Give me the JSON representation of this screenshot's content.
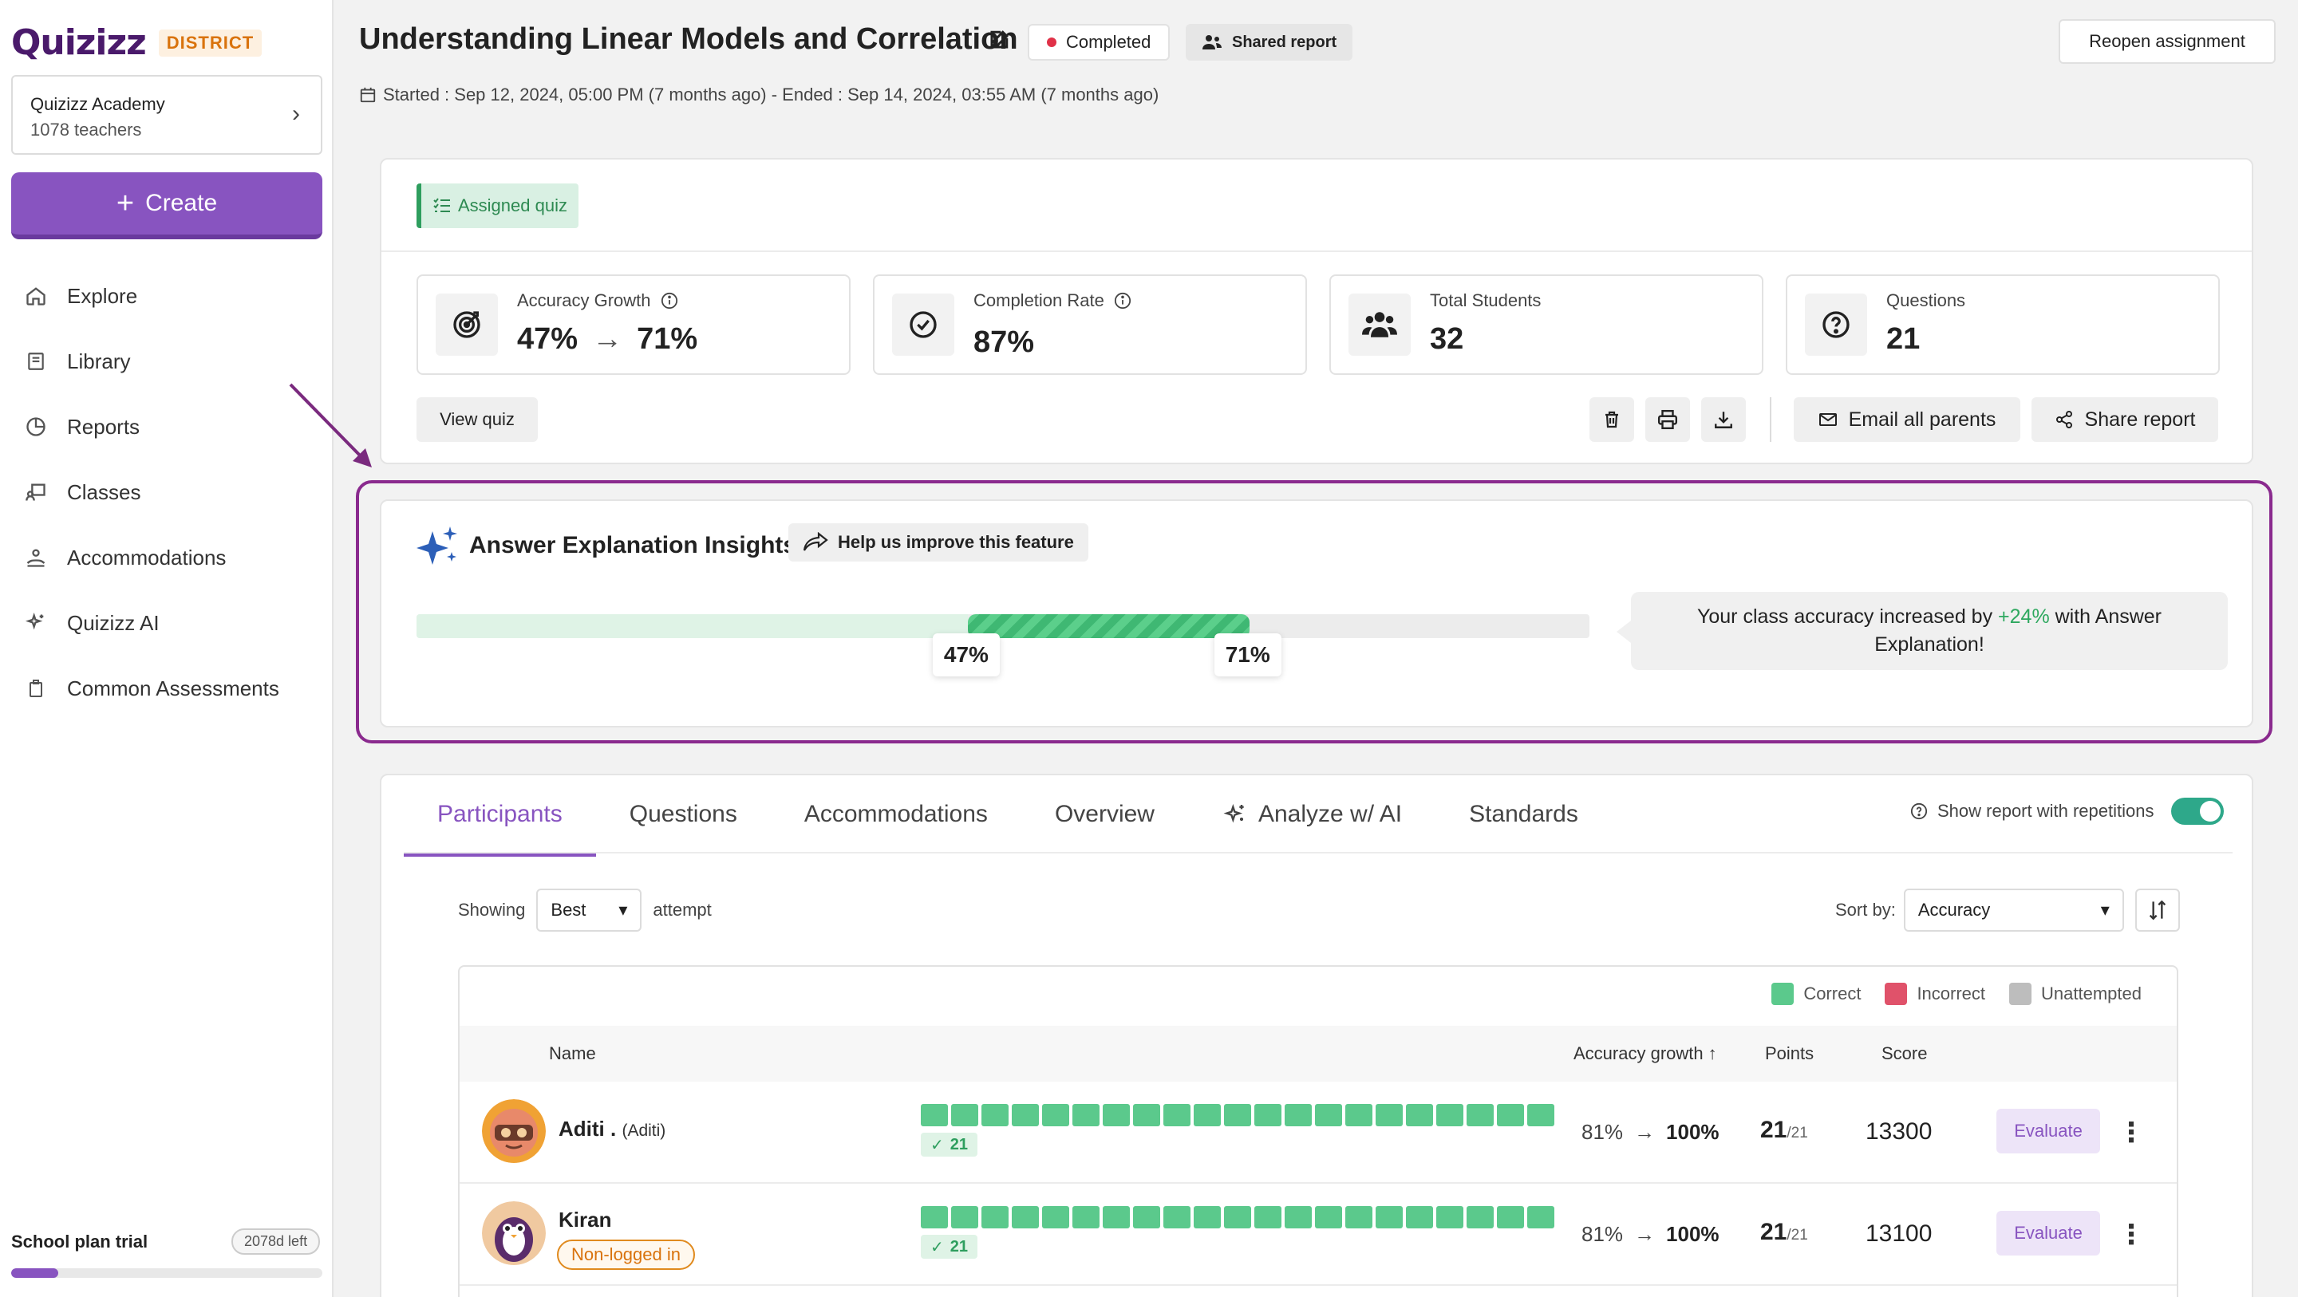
{
  "sidebar": {
    "logo": "Quizizz",
    "badge": "DISTRICT",
    "org_name": "Quizizz Academy",
    "org_sub": "1078 teachers",
    "create_label": "Create",
    "nav": [
      {
        "label": "Explore",
        "icon": "home-icon"
      },
      {
        "label": "Library",
        "icon": "book-icon"
      },
      {
        "label": "Reports",
        "icon": "pie-chart-icon"
      },
      {
        "label": "Classes",
        "icon": "classroom-icon"
      },
      {
        "label": "Accommodations",
        "icon": "accommodation-icon"
      },
      {
        "label": "Quizizz AI",
        "icon": "sparkle-icon"
      },
      {
        "label": "Common Assessments",
        "icon": "clipboard-icon"
      }
    ],
    "trial_label": "School plan trial",
    "trial_left": "2078d left",
    "trial_progress": 0.15
  },
  "header": {
    "title": "Understanding Linear Models and Correlation",
    "status": "Completed",
    "shared": "Shared report",
    "reopen": "Reopen assignment",
    "dates": "Started : Sep 12, 2024, 05:00 PM (7 months ago) - Ended : Sep 14, 2024, 03:55 AM (7 months ago)"
  },
  "summary": {
    "tag": "Assigned quiz",
    "stats": [
      {
        "label": "Accuracy Growth",
        "from": "47%",
        "to": "71%"
      },
      {
        "label": "Completion Rate",
        "value": "87%"
      },
      {
        "label": "Total Students",
        "value": "32"
      },
      {
        "label": "Questions",
        "value": "21"
      }
    ],
    "view_quiz": "View quiz",
    "email_parents": "Email all parents",
    "share_report": "Share report"
  },
  "insights": {
    "title": "Answer Explanation Insights",
    "help": "Help us improve this feature",
    "from_pct": "47%",
    "to_pct": "71%",
    "from_value": 0.47,
    "to_value": 0.71,
    "callout_pre": "Your class accuracy increased by ",
    "callout_delta": "+24%",
    "callout_post": " with Answer Explanation!"
  },
  "tabs": [
    "Participants",
    "Questions",
    "Accommodations",
    "Overview",
    "Analyze w/ AI",
    "Standards"
  ],
  "report_toggle": "Show report with repetitions",
  "filters": {
    "showing": "Showing",
    "attempt_value": "Best",
    "attempt": "attempt",
    "sort_by": "Sort by:",
    "sort_value": "Accuracy"
  },
  "legend": [
    "Correct",
    "Incorrect",
    "Unattempted"
  ],
  "colors": {
    "correct": "#5bc98c",
    "incorrect": "#e0526a",
    "unattempted": "#bdbdbd",
    "brand": "#8854c0"
  },
  "table": {
    "headers": {
      "name": "Name",
      "growth": "Accuracy growth",
      "points": "Points",
      "score": "Score"
    },
    "rows": [
      {
        "name": "Aditi .",
        "alias": "(Aditi)",
        "tag": "",
        "correct": "21",
        "from": "81%",
        "to": "100%",
        "points": "21",
        "total": "/21",
        "score": "13300",
        "action": "Evaluate"
      },
      {
        "name": "Kiran",
        "alias": "",
        "tag": "Non-logged in",
        "correct": "21",
        "from": "81%",
        "to": "100%",
        "points": "21",
        "total": "/21",
        "score": "13100",
        "action": "Evaluate"
      }
    ]
  }
}
